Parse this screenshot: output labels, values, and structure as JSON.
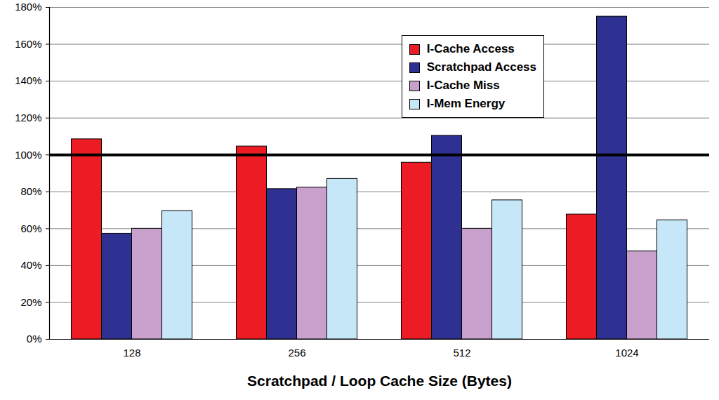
{
  "chart_data": {
    "type": "bar",
    "x_label": "Scratchpad / Loop Cache Size (Bytes)",
    "categories": [
      "128",
      "256",
      "512",
      "1024"
    ],
    "series": [
      {
        "name": "I-Cache Access",
        "color": "#ed1c24",
        "values": [
          108.5,
          104.6,
          95.8,
          67.7
        ]
      },
      {
        "name": "Scratchpad Access",
        "color": "#2e3192",
        "values": [
          57.3,
          81.5,
          110.4,
          175
        ]
      },
      {
        "name": "I-Cache Miss",
        "color": "#c8a0cc",
        "values": [
          60,
          82.3,
          60,
          47.7
        ]
      },
      {
        "name": "I-Mem Energy",
        "color": "#c6e7f8",
        "values": [
          69.6,
          87,
          75.4,
          64.6
        ]
      }
    ],
    "reference_line": 100,
    "ylim": [
      0,
      180
    ],
    "yticks": [
      {
        "value": 0,
        "label": "0%"
      },
      {
        "value": 20,
        "label": "20%"
      },
      {
        "value": 40,
        "label": "40%"
      },
      {
        "value": 60,
        "label": "60%"
      },
      {
        "value": 80,
        "label": "80%"
      },
      {
        "value": 100,
        "label": "100%"
      },
      {
        "value": 120,
        "label": "120%"
      },
      {
        "value": 140,
        "label": "140%"
      },
      {
        "value": 160,
        "label": "160%"
      },
      {
        "value": 180,
        "label": "180%"
      }
    ],
    "grid": true,
    "legend": "top right"
  }
}
